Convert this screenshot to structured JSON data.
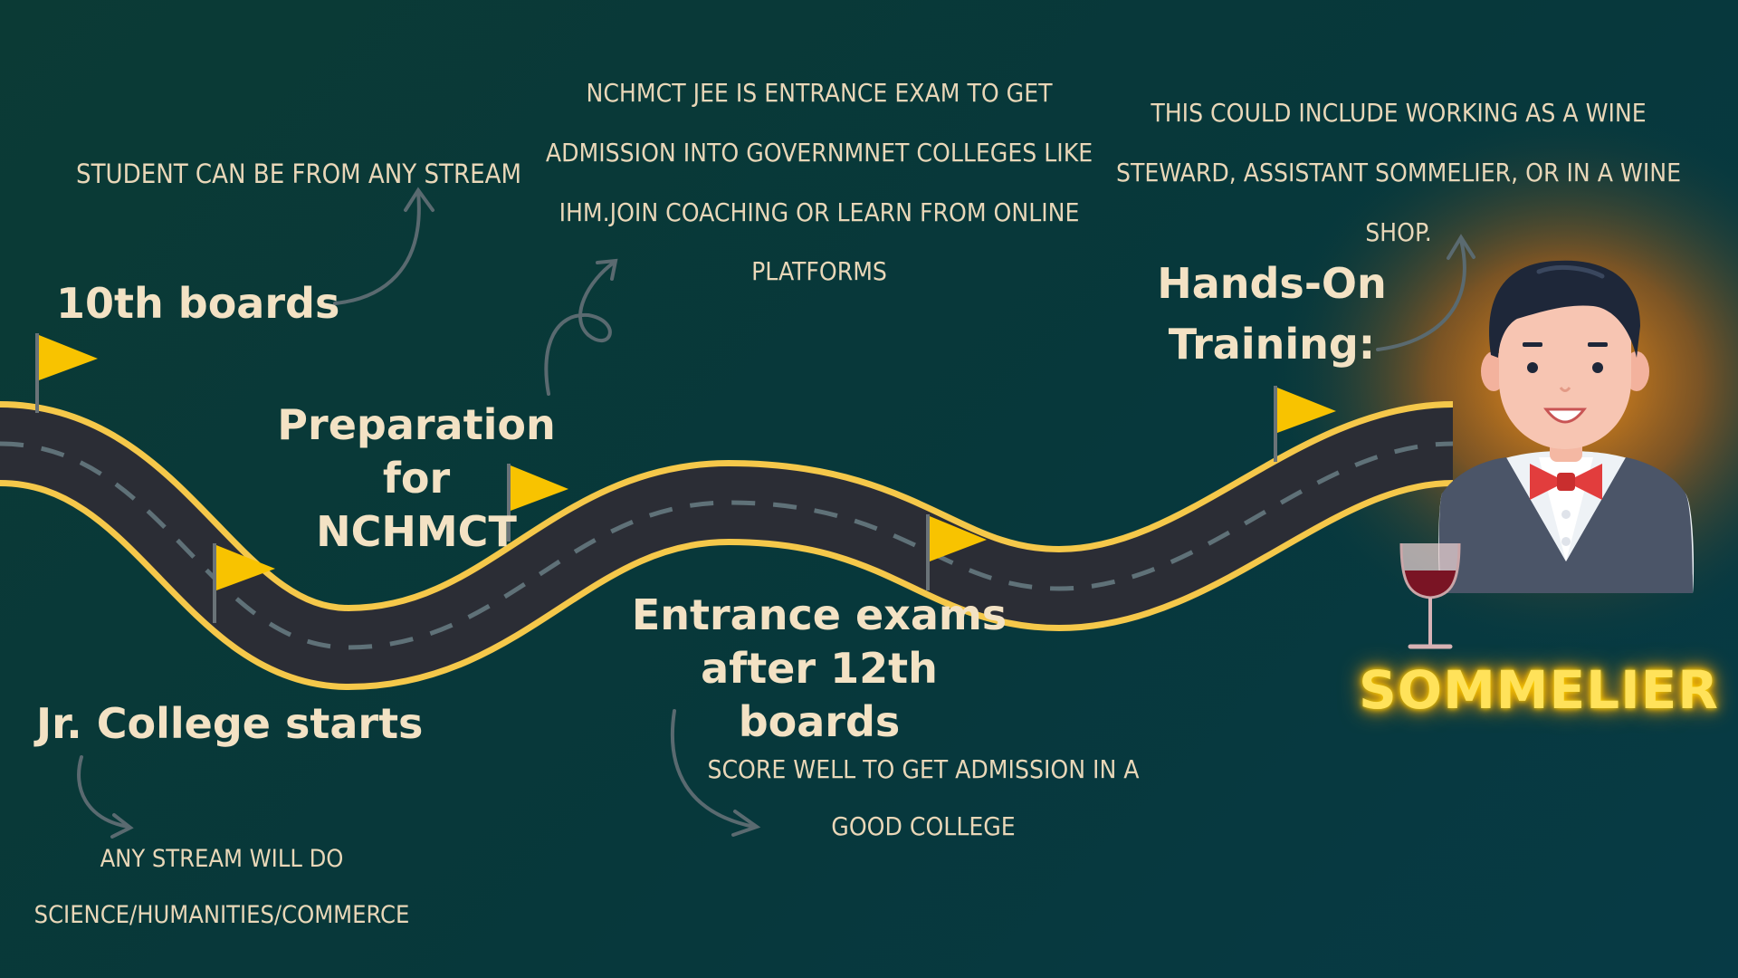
{
  "milestones": {
    "tenth_boards": "10th boards",
    "jr_college": "Jr. College starts",
    "prep_line1": "Preparation for",
    "prep_line2": "NCHMCT",
    "entrance_line1": "Entrance exams",
    "entrance_line2": "after 12th boards",
    "hands_on_line1": "Hands-On",
    "hands_on_line2": "Training:"
  },
  "notes": {
    "any_stream": "Student can be from any stream",
    "stream_line1": "Any stream will do",
    "stream_line2": "science/humanities/commerce",
    "nchmct_line1": "NCHMCT JEE is entrance exam to get",
    "nchmct_line2": "admission into governmnet colleges like",
    "nchmct_line3": "IHM.join coaching or learn from online",
    "nchmct_line4": "platforms",
    "score_line1": "Score well to get admission in a",
    "score_line2": "good college",
    "training_line1": "This could include working as a wine",
    "training_line2": "steward, assistant sommelier, or in a wine",
    "training_line3": "shop."
  },
  "career": {
    "title": "SOMMELIER"
  },
  "icons": [
    "flag-icon",
    "arrow-icon",
    "sommelier-icon",
    "wine-glass-icon"
  ],
  "colors": {
    "background": "#0b3a35",
    "road": "#2b2d35",
    "road_edge": "#f5c84a",
    "flag": "#f8c300",
    "text": "#f3e2c4",
    "neon": "#ffe25a"
  }
}
